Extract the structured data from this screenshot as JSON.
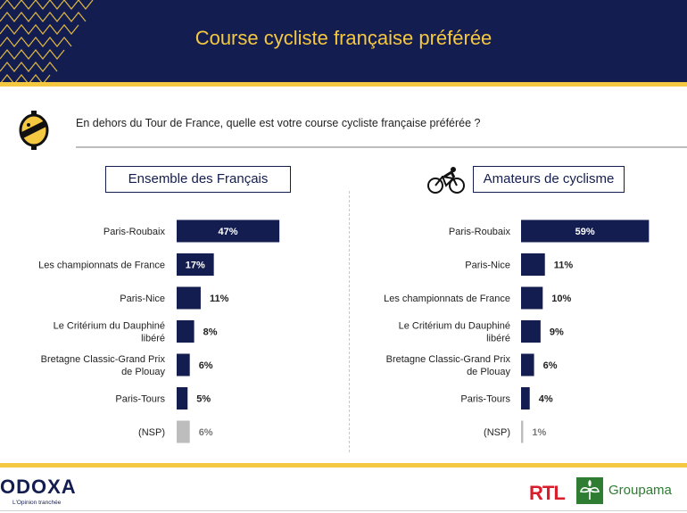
{
  "header": {
    "title": "Course cycliste française préférée"
  },
  "question": "En dehors du Tour de France, quelle est votre course cycliste française préférée ?",
  "colors": {
    "navy": "#141d4f",
    "gold": "#f5c842",
    "nsp_bar": "#bdbdbd",
    "rtl_red": "#d81e2c",
    "groupama_green": "#2e7d32"
  },
  "icons": {
    "question": "odoxa-s-icon",
    "group2": "cyclist-icon"
  },
  "chart_data": [
    {
      "type": "bar",
      "orientation": "horizontal",
      "title": "Ensemble des Français",
      "categories": [
        "Paris-Roubaix",
        "Les championnats de France",
        "Paris-Nice",
        "Le Critérium du Dauphiné libéré",
        "Bretagne Classic-Grand Prix de Plouay",
        "Paris-Tours",
        "(NSP)"
      ],
      "values": [
        47,
        17,
        11,
        8,
        6,
        5,
        6
      ],
      "value_labels": [
        "47%",
        "17%",
        "11%",
        "8%",
        "6%",
        "5%",
        "6%"
      ]
    },
    {
      "type": "bar",
      "orientation": "horizontal",
      "title": "Amateurs de cyclisme",
      "categories": [
        "Paris-Roubaix",
        "Paris-Nice",
        "Les championnats de France",
        "Le Critérium du Dauphiné libéré",
        "Bretagne Classic-Grand Prix de Plouay",
        "Paris-Tours",
        "(NSP)"
      ],
      "values": [
        59,
        11,
        10,
        9,
        6,
        4,
        1
      ],
      "value_labels": [
        "59%",
        "11%",
        "10%",
        "9%",
        "6%",
        "4%",
        "1%"
      ]
    }
  ],
  "footer": {
    "odoxa": "ODOXA",
    "tagline": "L'Opinion tranchée",
    "rtl": "RTL",
    "groupama": "Groupama"
  }
}
